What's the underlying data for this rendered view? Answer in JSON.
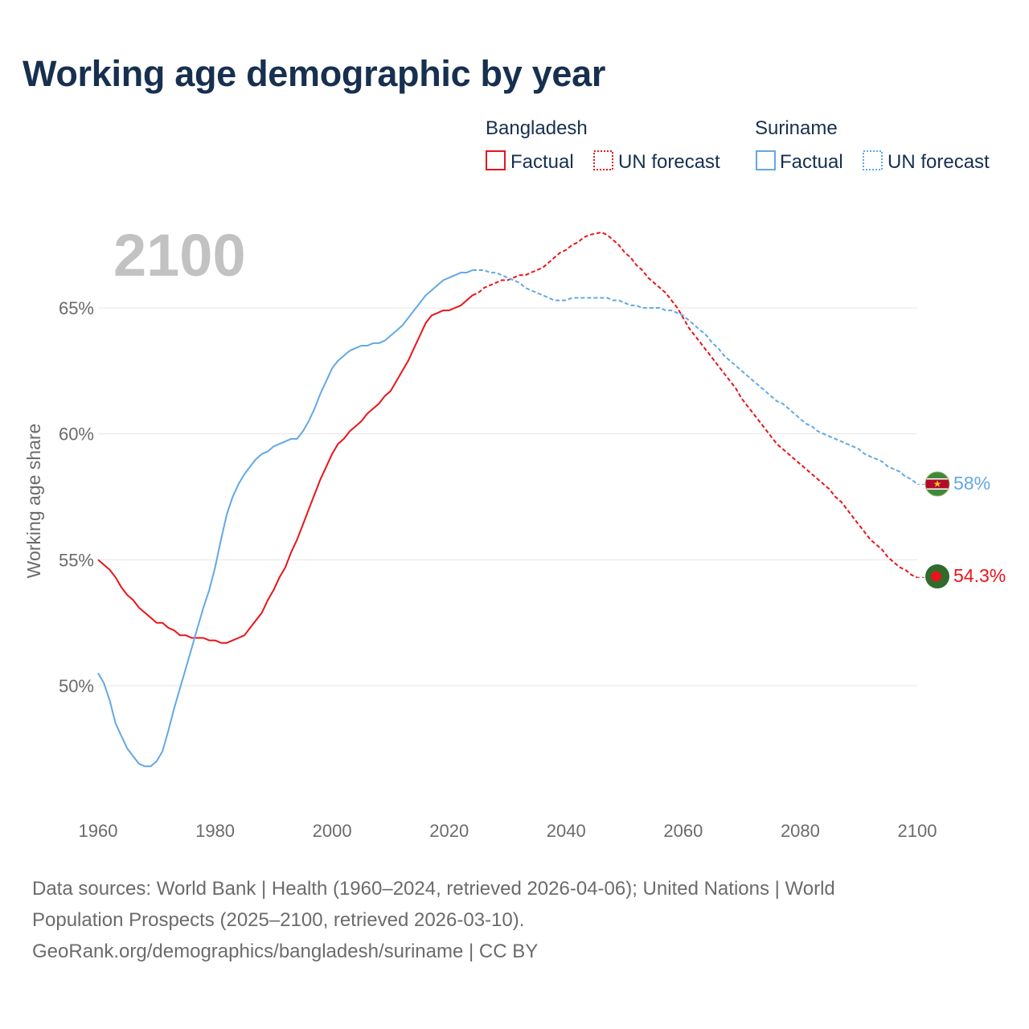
{
  "title": "Working age demographic by year",
  "year_display": "2100",
  "legend": {
    "groups": [
      {
        "country": "Bangladesh",
        "factual_label": "Factual",
        "forecast_label": "UN forecast",
        "color": "#e8141a"
      },
      {
        "country": "Suriname",
        "factual_label": "Factual",
        "forecast_label": "UN forecast",
        "color": "#62a8e5"
      }
    ]
  },
  "chart_data": {
    "type": "line",
    "title": "Working age demographic by year",
    "xlabel": "",
    "ylabel": "Working age share",
    "xlim": [
      1960,
      2100
    ],
    "ylim": [
      45.3,
      70
    ],
    "x_ticks": [
      1960,
      1980,
      2000,
      2020,
      2040,
      2060,
      2080,
      2100
    ],
    "y_ticks": [
      50,
      55,
      60,
      65
    ],
    "y_tick_labels": [
      "50%",
      "55%",
      "60%",
      "65%"
    ],
    "grid": true,
    "forecast_start": 2024,
    "series": [
      {
        "name": "Bangladesh",
        "color": "#e8141a",
        "end_label": "54.3%",
        "points": [
          [
            1960,
            55.0
          ],
          [
            1961,
            54.8
          ],
          [
            1962,
            54.6
          ],
          [
            1963,
            54.3
          ],
          [
            1964,
            53.9
          ],
          [
            1965,
            53.6
          ],
          [
            1966,
            53.4
          ],
          [
            1967,
            53.1
          ],
          [
            1968,
            52.9
          ],
          [
            1969,
            52.7
          ],
          [
            1970,
            52.5
          ],
          [
            1971,
            52.5
          ],
          [
            1972,
            52.3
          ],
          [
            1973,
            52.2
          ],
          [
            1974,
            52.0
          ],
          [
            1975,
            52.0
          ],
          [
            1976,
            51.9
          ],
          [
            1977,
            51.9
          ],
          [
            1978,
            51.9
          ],
          [
            1979,
            51.8
          ],
          [
            1980,
            51.8
          ],
          [
            1981,
            51.7
          ],
          [
            1982,
            51.7
          ],
          [
            1983,
            51.8
          ],
          [
            1984,
            51.9
          ],
          [
            1985,
            52.0
          ],
          [
            1986,
            52.3
          ],
          [
            1987,
            52.6
          ],
          [
            1988,
            52.9
          ],
          [
            1989,
            53.4
          ],
          [
            1990,
            53.8
          ],
          [
            1991,
            54.3
          ],
          [
            1992,
            54.7
          ],
          [
            1993,
            55.3
          ],
          [
            1994,
            55.8
          ],
          [
            1995,
            56.4
          ],
          [
            1996,
            57.0
          ],
          [
            1997,
            57.6
          ],
          [
            1998,
            58.2
          ],
          [
            1999,
            58.7
          ],
          [
            2000,
            59.2
          ],
          [
            2001,
            59.6
          ],
          [
            2002,
            59.8
          ],
          [
            2003,
            60.1
          ],
          [
            2004,
            60.3
          ],
          [
            2005,
            60.5
          ],
          [
            2006,
            60.8
          ],
          [
            2007,
            61.0
          ],
          [
            2008,
            61.2
          ],
          [
            2009,
            61.5
          ],
          [
            2010,
            61.7
          ],
          [
            2011,
            62.1
          ],
          [
            2012,
            62.5
          ],
          [
            2013,
            62.9
          ],
          [
            2014,
            63.4
          ],
          [
            2015,
            63.9
          ],
          [
            2016,
            64.4
          ],
          [
            2017,
            64.7
          ],
          [
            2018,
            64.8
          ],
          [
            2019,
            64.9
          ],
          [
            2020,
            64.9
          ],
          [
            2021,
            65.0
          ],
          [
            2022,
            65.1
          ],
          [
            2023,
            65.3
          ],
          [
            2024,
            65.5
          ],
          [
            2025,
            65.6
          ],
          [
            2026,
            65.8
          ],
          [
            2027,
            65.9
          ],
          [
            2028,
            66.0
          ],
          [
            2029,
            66.1
          ],
          [
            2030,
            66.1
          ],
          [
            2031,
            66.2
          ],
          [
            2032,
            66.3
          ],
          [
            2033,
            66.3
          ],
          [
            2034,
            66.4
          ],
          [
            2035,
            66.5
          ],
          [
            2036,
            66.6
          ],
          [
            2037,
            66.8
          ],
          [
            2038,
            67.0
          ],
          [
            2039,
            67.2
          ],
          [
            2040,
            67.3
          ],
          [
            2041,
            67.5
          ],
          [
            2042,
            67.6
          ],
          [
            2043,
            67.8
          ],
          [
            2044,
            67.9
          ],
          [
            2045,
            67.95
          ],
          [
            2046,
            68.0
          ],
          [
            2047,
            67.9
          ],
          [
            2048,
            67.7
          ],
          [
            2049,
            67.5
          ],
          [
            2050,
            67.2
          ],
          [
            2051,
            67.0
          ],
          [
            2052,
            66.7
          ],
          [
            2053,
            66.5
          ],
          [
            2054,
            66.2
          ],
          [
            2055,
            66.0
          ],
          [
            2056,
            65.8
          ],
          [
            2057,
            65.6
          ],
          [
            2058,
            65.3
          ],
          [
            2059,
            65.0
          ],
          [
            2060,
            64.6
          ],
          [
            2061,
            64.2
          ],
          [
            2062,
            63.9
          ],
          [
            2063,
            63.6
          ],
          [
            2064,
            63.3
          ],
          [
            2065,
            63.0
          ],
          [
            2066,
            62.7
          ],
          [
            2067,
            62.4
          ],
          [
            2068,
            62.1
          ],
          [
            2069,
            61.8
          ],
          [
            2070,
            61.4
          ],
          [
            2071,
            61.1
          ],
          [
            2072,
            60.8
          ],
          [
            2073,
            60.5
          ],
          [
            2074,
            60.2
          ],
          [
            2075,
            59.9
          ],
          [
            2076,
            59.6
          ],
          [
            2077,
            59.4
          ],
          [
            2078,
            59.2
          ],
          [
            2079,
            59.0
          ],
          [
            2080,
            58.8
          ],
          [
            2081,
            58.6
          ],
          [
            2082,
            58.4
          ],
          [
            2083,
            58.2
          ],
          [
            2084,
            58.0
          ],
          [
            2085,
            57.8
          ],
          [
            2086,
            57.5
          ],
          [
            2087,
            57.3
          ],
          [
            2088,
            57.0
          ],
          [
            2089,
            56.7
          ],
          [
            2090,
            56.4
          ],
          [
            2091,
            56.1
          ],
          [
            2092,
            55.8
          ],
          [
            2093,
            55.6
          ],
          [
            2094,
            55.4
          ],
          [
            2095,
            55.1
          ],
          [
            2096,
            54.9
          ],
          [
            2097,
            54.7
          ],
          [
            2098,
            54.6
          ],
          [
            2099,
            54.4
          ],
          [
            2100,
            54.3
          ]
        ]
      },
      {
        "name": "Suriname",
        "color": "#62a8e5",
        "end_label": "58%",
        "points": [
          [
            1960,
            50.5
          ],
          [
            1961,
            50.1
          ],
          [
            1962,
            49.4
          ],
          [
            1963,
            48.5
          ],
          [
            1964,
            48.0
          ],
          [
            1965,
            47.5
          ],
          [
            1966,
            47.2
          ],
          [
            1967,
            46.9
          ],
          [
            1968,
            46.8
          ],
          [
            1969,
            46.8
          ],
          [
            1970,
            47.0
          ],
          [
            1971,
            47.4
          ],
          [
            1972,
            48.2
          ],
          [
            1973,
            49.1
          ],
          [
            1974,
            49.9
          ],
          [
            1975,
            50.7
          ],
          [
            1976,
            51.5
          ],
          [
            1977,
            52.3
          ],
          [
            1978,
            53.1
          ],
          [
            1979,
            53.8
          ],
          [
            1980,
            54.7
          ],
          [
            1981,
            55.8
          ],
          [
            1982,
            56.8
          ],
          [
            1983,
            57.5
          ],
          [
            1984,
            58.0
          ],
          [
            1985,
            58.4
          ],
          [
            1986,
            58.7
          ],
          [
            1987,
            59.0
          ],
          [
            1988,
            59.2
          ],
          [
            1989,
            59.3
          ],
          [
            1990,
            59.5
          ],
          [
            1991,
            59.6
          ],
          [
            1992,
            59.7
          ],
          [
            1993,
            59.8
          ],
          [
            1994,
            59.8
          ],
          [
            1995,
            60.1
          ],
          [
            1996,
            60.5
          ],
          [
            1997,
            61.0
          ],
          [
            1998,
            61.6
          ],
          [
            1999,
            62.1
          ],
          [
            2000,
            62.6
          ],
          [
            2001,
            62.9
          ],
          [
            2002,
            63.1
          ],
          [
            2003,
            63.3
          ],
          [
            2004,
            63.4
          ],
          [
            2005,
            63.5
          ],
          [
            2006,
            63.5
          ],
          [
            2007,
            63.6
          ],
          [
            2008,
            63.6
          ],
          [
            2009,
            63.7
          ],
          [
            2010,
            63.9
          ],
          [
            2011,
            64.1
          ],
          [
            2012,
            64.3
          ],
          [
            2013,
            64.6
          ],
          [
            2014,
            64.9
          ],
          [
            2015,
            65.2
          ],
          [
            2016,
            65.5
          ],
          [
            2017,
            65.7
          ],
          [
            2018,
            65.9
          ],
          [
            2019,
            66.1
          ],
          [
            2020,
            66.2
          ],
          [
            2021,
            66.3
          ],
          [
            2022,
            66.4
          ],
          [
            2023,
            66.4
          ],
          [
            2024,
            66.5
          ],
          [
            2025,
            66.5
          ],
          [
            2026,
            66.5
          ],
          [
            2027,
            66.4
          ],
          [
            2028,
            66.4
          ],
          [
            2029,
            66.3
          ],
          [
            2030,
            66.2
          ],
          [
            2031,
            66.1
          ],
          [
            2032,
            66.0
          ],
          [
            2033,
            65.8
          ],
          [
            2034,
            65.7
          ],
          [
            2035,
            65.6
          ],
          [
            2036,
            65.5
          ],
          [
            2037,
            65.4
          ],
          [
            2038,
            65.3
          ],
          [
            2039,
            65.3
          ],
          [
            2040,
            65.3
          ],
          [
            2041,
            65.4
          ],
          [
            2042,
            65.4
          ],
          [
            2043,
            65.4
          ],
          [
            2044,
            65.4
          ],
          [
            2045,
            65.4
          ],
          [
            2046,
            65.4
          ],
          [
            2047,
            65.4
          ],
          [
            2048,
            65.3
          ],
          [
            2049,
            65.3
          ],
          [
            2050,
            65.2
          ],
          [
            2051,
            65.1
          ],
          [
            2052,
            65.1
          ],
          [
            2053,
            65.0
          ],
          [
            2054,
            65.0
          ],
          [
            2055,
            65.0
          ],
          [
            2056,
            65.0
          ],
          [
            2057,
            64.9
          ],
          [
            2058,
            64.9
          ],
          [
            2059,
            64.8
          ],
          [
            2060,
            64.7
          ],
          [
            2061,
            64.5
          ],
          [
            2062,
            64.3
          ],
          [
            2063,
            64.1
          ],
          [
            2064,
            63.9
          ],
          [
            2065,
            63.6
          ],
          [
            2066,
            63.4
          ],
          [
            2067,
            63.1
          ],
          [
            2068,
            62.9
          ],
          [
            2069,
            62.7
          ],
          [
            2070,
            62.5
          ],
          [
            2071,
            62.3
          ],
          [
            2072,
            62.1
          ],
          [
            2073,
            61.9
          ],
          [
            2074,
            61.7
          ],
          [
            2075,
            61.5
          ],
          [
            2076,
            61.3
          ],
          [
            2077,
            61.2
          ],
          [
            2078,
            61.0
          ],
          [
            2079,
            60.8
          ],
          [
            2080,
            60.6
          ],
          [
            2081,
            60.4
          ],
          [
            2082,
            60.3
          ],
          [
            2083,
            60.1
          ],
          [
            2084,
            60.0
          ],
          [
            2085,
            59.9
          ],
          [
            2086,
            59.8
          ],
          [
            2087,
            59.7
          ],
          [
            2088,
            59.6
          ],
          [
            2089,
            59.5
          ],
          [
            2090,
            59.4
          ],
          [
            2091,
            59.2
          ],
          [
            2092,
            59.1
          ],
          [
            2093,
            59.0
          ],
          [
            2094,
            58.9
          ],
          [
            2095,
            58.7
          ],
          [
            2096,
            58.6
          ],
          [
            2097,
            58.5
          ],
          [
            2098,
            58.3
          ],
          [
            2099,
            58.2
          ],
          [
            2100,
            58.0
          ]
        ]
      }
    ]
  },
  "footer": {
    "line1": "Data sources: World Bank | Health (1960–2024, retrieved 2026-04-06); United Nations | World",
    "line2": "Population Prospects (2025–2100, retrieved 2026-03-10).",
    "line3": "GeoRank.org/demographics/bangladesh/suriname | CC BY"
  }
}
